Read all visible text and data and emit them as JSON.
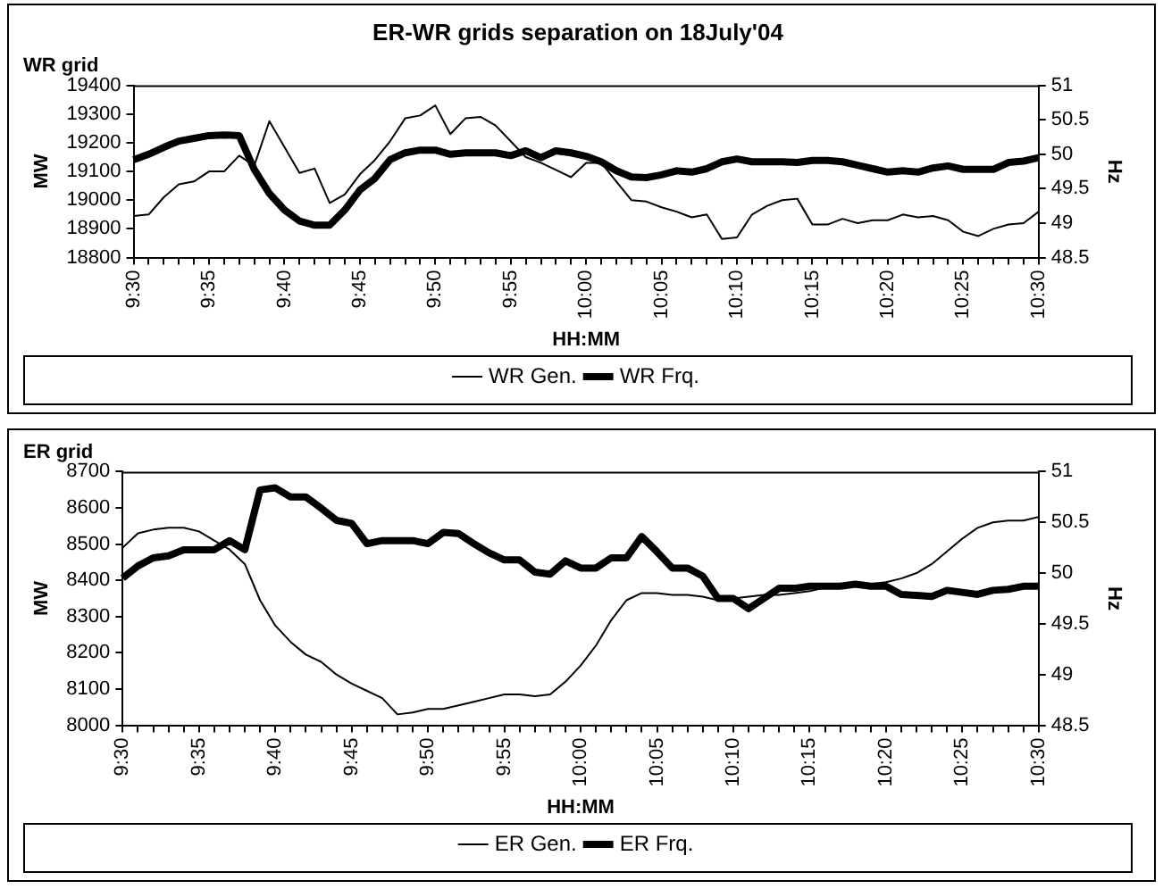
{
  "chart_data": [
    {
      "type": "line",
      "title": "ER-WR grids separation on 18July'04",
      "subtitle": "WR grid",
      "xlabel": "HH:MM",
      "ylabel": "MW",
      "y2label": "Hz",
      "categories": [
        "9:30",
        null,
        null,
        null,
        null,
        "9:35",
        null,
        null,
        null,
        null,
        "9:40",
        null,
        null,
        null,
        null,
        "9:45",
        null,
        null,
        null,
        null,
        "9:50",
        null,
        null,
        null,
        null,
        "9:55",
        null,
        null,
        null,
        null,
        "10:00",
        null,
        null,
        null,
        null,
        "10:05",
        null,
        null,
        null,
        null,
        "10:10",
        null,
        null,
        null,
        null,
        "10:15",
        null,
        null,
        null,
        null,
        "10:20",
        null,
        null,
        null,
        null,
        "10:25",
        null,
        null,
        null,
        null,
        "10:30"
      ],
      "series": [
        {
          "name": "WR Gen.",
          "color": "#000000",
          "values": [
            18945,
            18950,
            19010,
            19055,
            19065,
            19100,
            19100,
            19155,
            19120,
            19275,
            19185,
            19095,
            19110,
            18990,
            19020,
            19090,
            19140,
            19205,
            19285,
            19295,
            19330,
            19230,
            19285,
            19290,
            19260,
            19205,
            19150,
            19130,
            19105,
            19080,
            19130,
            19130,
            19065,
            19000,
            18995,
            18975,
            18960,
            18940,
            18950,
            18865,
            18870,
            18950,
            18980,
            19000,
            19005,
            18915,
            18915,
            18935,
            18920,
            18930,
            18930,
            18950,
            18940,
            18945,
            18930,
            18890,
            18875,
            18900,
            18915,
            18920,
            18960
          ]
        },
        {
          "name": "WR Frq.",
          "color": "#000000",
          "axis": "y2",
          "values": [
            49.92,
            50.0,
            50.1,
            50.19,
            50.23,
            50.27,
            50.28,
            50.27,
            49.78,
            49.43,
            49.19,
            49.03,
            48.97,
            48.97,
            49.19,
            49.48,
            49.65,
            49.92,
            50.02,
            50.06,
            50.06,
            50.0,
            50.02,
            50.02,
            50.02,
            49.98,
            50.05,
            49.95,
            50.05,
            50.02,
            49.97,
            49.89,
            49.76,
            49.67,
            49.66,
            49.7,
            49.76,
            49.74,
            49.79,
            49.89,
            49.93,
            49.89,
            49.89,
            49.89,
            49.88,
            49.91,
            49.91,
            49.89,
            49.84,
            49.79,
            49.74,
            49.76,
            49.74,
            49.8,
            49.83,
            49.78,
            49.78,
            49.78,
            49.88,
            49.9,
            49.95
          ]
        }
      ],
      "ylim": [
        18800,
        19400
      ],
      "yticks": [
        18800,
        18900,
        19000,
        19100,
        19200,
        19300,
        19400
      ],
      "y2lim": [
        48.5,
        51
      ],
      "y2ticks": [
        48.5,
        49,
        49.5,
        50,
        50.5,
        51
      ],
      "grid": false,
      "legend": "bottom",
      "marker": "none",
      "line_style": "solid"
    },
    {
      "type": "line",
      "subtitle": "ER grid",
      "xlabel": "HH:MM",
      "ylabel": "MW",
      "y2label": "Hz",
      "categories": [
        "9:30",
        null,
        null,
        null,
        null,
        "9:35",
        null,
        null,
        null,
        null,
        "9:40",
        null,
        null,
        null,
        null,
        "9:45",
        null,
        null,
        null,
        null,
        "9:50",
        null,
        null,
        null,
        null,
        "9:55",
        null,
        null,
        null,
        null,
        "10:00",
        null,
        null,
        null,
        null,
        "10:05",
        null,
        null,
        null,
        null,
        "10:10",
        null,
        null,
        null,
        null,
        "10:15",
        null,
        null,
        null,
        null,
        "10:20",
        null,
        null,
        null,
        null,
        "10:25",
        null,
        null,
        null,
        null,
        "10:30"
      ],
      "series": [
        {
          "name": "ER Gen.",
          "color": "#000000",
          "values": [
            8490,
            8530,
            8540,
            8545,
            8545,
            8535,
            8510,
            8485,
            8445,
            8345,
            8275,
            8230,
            8195,
            8175,
            8140,
            8115,
            8095,
            8075,
            8030,
            8035,
            8045,
            8045,
            8055,
            8065,
            8075,
            8085,
            8085,
            8080,
            8085,
            8120,
            8165,
            8220,
            8290,
            8345,
            8365,
            8365,
            8360,
            8360,
            8355,
            8345,
            8350,
            8355,
            8360,
            8360,
            8365,
            8370,
            8380,
            8385,
            8390,
            8390,
            8395,
            8405,
            8420,
            8445,
            8480,
            8515,
            8545,
            8560,
            8565,
            8565,
            8575
          ]
        },
        {
          "name": "ER Frq.",
          "color": "#000000",
          "axis": "y2",
          "values": [
            49.95,
            50.07,
            50.15,
            50.17,
            50.23,
            50.23,
            50.23,
            50.32,
            50.23,
            50.82,
            50.84,
            50.75,
            50.75,
            50.64,
            50.52,
            50.49,
            50.29,
            50.32,
            50.32,
            50.32,
            50.29,
            50.4,
            50.39,
            50.29,
            50.2,
            50.13,
            50.13,
            50.01,
            49.99,
            50.12,
            50.05,
            50.05,
            50.15,
            50.15,
            50.36,
            50.21,
            50.05,
            50.05,
            49.97,
            49.75,
            49.75,
            49.65,
            49.75,
            49.85,
            49.85,
            49.87,
            49.87,
            49.87,
            49.89,
            49.87,
            49.87,
            49.79,
            49.78,
            49.77,
            49.83,
            49.81,
            49.79,
            49.83,
            49.84,
            49.87,
            49.87
          ]
        }
      ],
      "ylim": [
        8000,
        8700
      ],
      "yticks": [
        8000,
        8100,
        8200,
        8300,
        8400,
        8500,
        8600,
        8700
      ],
      "y2lim": [
        48.5,
        51
      ],
      "y2ticks": [
        48.5,
        49,
        49.5,
        50,
        50.5,
        51
      ],
      "grid": false,
      "legend": "bottom",
      "marker": "none",
      "line_style": "solid"
    }
  ]
}
